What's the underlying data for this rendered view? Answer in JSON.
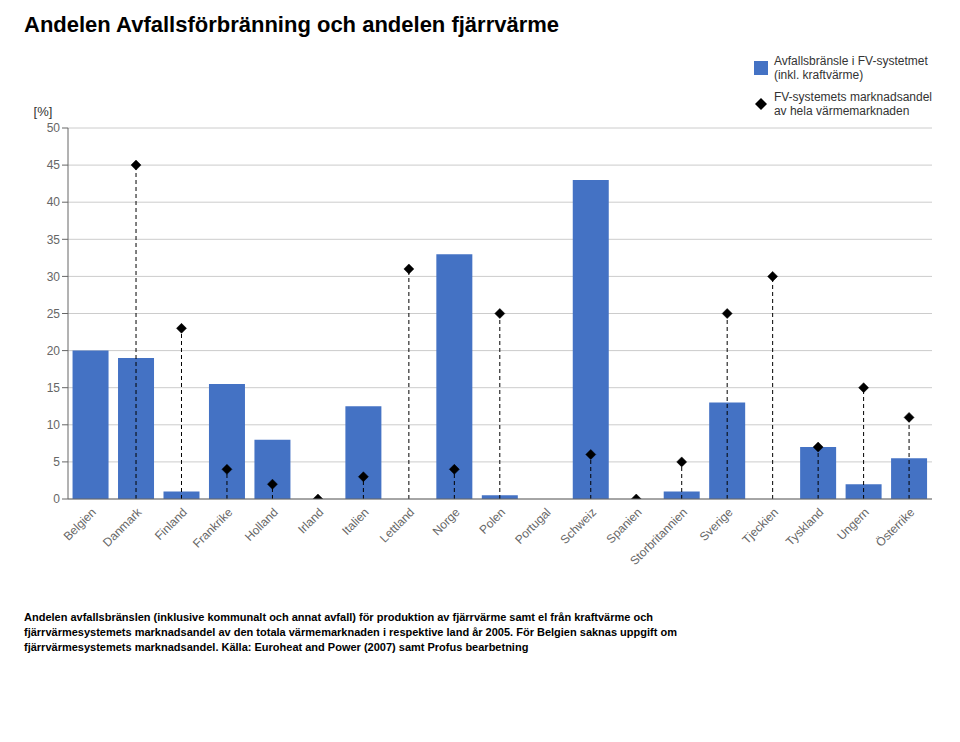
{
  "chart_data": {
    "type": "bar",
    "title": "Andelen Avfallsförbränning och andelen fjärrvärme",
    "ylabel": "[%]",
    "categories": [
      "Belgien",
      "Danmark",
      "Finland",
      "Frankrike",
      "Holland",
      "Irland",
      "Italien",
      "Lettland",
      "Norge",
      "Polen",
      "Portugal",
      "Schweiz",
      "Spanien",
      "Storbritannien",
      "Sverige",
      "Tjeckien",
      "Tyskland",
      "Ungern",
      "Österrike"
    ],
    "series": [
      {
        "name": "Avfallsbränsle i FV-systetmet\n(inkl. kraftvärme)",
        "type": "bar",
        "color": "#4472C4",
        "values": [
          20,
          19,
          1,
          15.5,
          8,
          null,
          12.5,
          null,
          33,
          0.5,
          null,
          43,
          null,
          1,
          13,
          null,
          7,
          2,
          5.5
        ]
      },
      {
        "name": "FV-systemets marknadsandel\nav hela värmemarknaden",
        "type": "scatter",
        "marker": "diamond",
        "line_style": "dashed",
        "color": "#000000",
        "values": [
          null,
          45,
          23,
          4,
          2,
          0,
          3,
          31,
          4,
          25,
          null,
          6,
          0,
          5,
          25,
          30,
          7,
          15,
          11
        ]
      }
    ],
    "ylim": [
      0,
      50
    ],
    "yticks": [
      0,
      5,
      10,
      15,
      20,
      25,
      30,
      35,
      40,
      45,
      50
    ],
    "grid": true,
    "legend": "upper right",
    "footnote": "Andelen avfallsbränslen (inklusive kommunalt och annat avfall) för produktion av fjärrvärme samt el från kraftvärme och\nfjärrvärmesystemets marknadsandel av den totala värmemarknaden i respektive land år 2005. För Belgien saknas uppgift om\nfjärrvärmesystemets marknadsandel. Källa: Euroheat and Power (2007) samt Profus bearbetning"
  }
}
